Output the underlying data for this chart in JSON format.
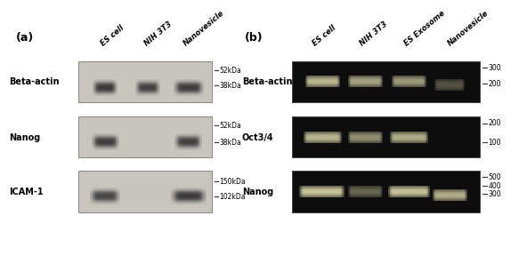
{
  "panel_a_label": "(a)",
  "panel_b_label": "(b)",
  "panel_a_cols": [
    "ES cell",
    "NIH 3T3",
    "Nanovesicle"
  ],
  "panel_b_cols": [
    "ES cell",
    "NIH 3T3",
    "ES Exosome",
    "Nanovesicle"
  ],
  "panel_a_rows": [
    "Beta-actin",
    "Nanog",
    "ICAM-1"
  ],
  "panel_b_rows": [
    "Beta-actin",
    "Oct3/4",
    "Nanog"
  ],
  "panel_a_markers": {
    "Beta-actin": [
      [
        "52kDa",
        0.72
      ],
      [
        "38kDa",
        0.57
      ]
    ],
    "Nanog": [
      [
        "52kDa",
        0.72
      ],
      [
        "38kDa",
        0.57
      ]
    ],
    "ICAM-1": [
      [
        "150kDa",
        0.72
      ],
      [
        "102kDa",
        0.57
      ]
    ]
  },
  "panel_b_markers": {
    "Beta-actin": [
      [
        "300",
        0.78
      ],
      [
        "200",
        0.55
      ]
    ],
    "Oct3/4": [
      [
        "200",
        0.78
      ],
      [
        "100",
        0.44
      ]
    ],
    "Nanog": [
      [
        "500",
        0.82
      ],
      [
        "400",
        0.62
      ],
      [
        "300",
        0.42
      ]
    ]
  },
  "gel_bg_a": "#c8c4be",
  "gel_border_a": "#888880",
  "band_color_a": "#2a2a2a",
  "gel_bg_b": "#0d0d0d",
  "gel_border_b": "#444444",
  "band_color_b_bright": "#d8d4a8",
  "label_color": "#111111",
  "marker_color": "#222222"
}
